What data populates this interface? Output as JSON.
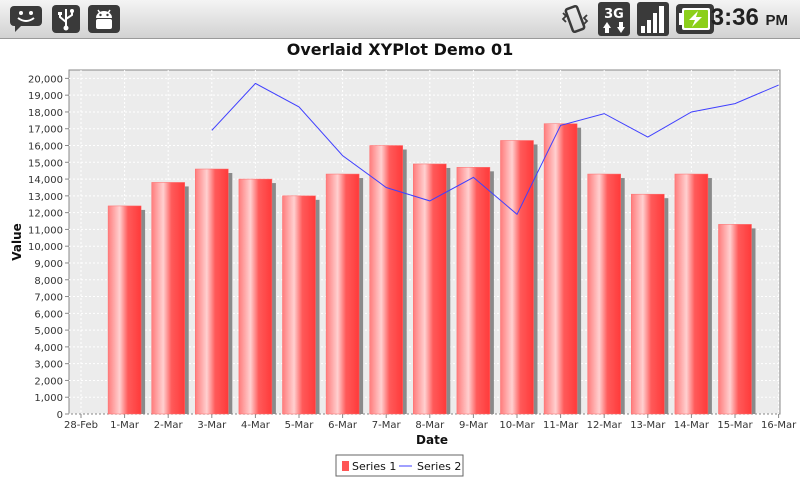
{
  "status_bar": {
    "time": "3:36",
    "ampm": "PM",
    "left_icons": [
      "notification-chat-icon",
      "usb-icon",
      "android-debug-icon"
    ],
    "right_icons": [
      "vibrate-icon",
      "3g-data-icon",
      "signal-strength-icon",
      "battery-charging-icon"
    ]
  },
  "chart_data": {
    "type": "bar",
    "title": "Overlaid XYPlot Demo 01",
    "xlabel": "Date",
    "ylabel": "Value",
    "ylim": [
      0,
      20500
    ],
    "yticks": [
      0,
      1000,
      2000,
      3000,
      4000,
      5000,
      6000,
      7000,
      8000,
      9000,
      10000,
      11000,
      12000,
      13000,
      14000,
      15000,
      16000,
      17000,
      18000,
      19000,
      20000
    ],
    "ytick_labels": [
      "0",
      "1,000",
      "2,000",
      "3,000",
      "4,000",
      "5,000",
      "6,000",
      "7,000",
      "8,000",
      "9,000",
      "10,000",
      "11,000",
      "12,000",
      "13,000",
      "14,000",
      "15,000",
      "16,000",
      "17,000",
      "18,000",
      "19,000",
      "20,000"
    ],
    "xtick_labels": [
      "28-Feb",
      "1-Mar",
      "2-Mar",
      "3-Mar",
      "4-Mar",
      "5-Mar",
      "6-Mar",
      "7-Mar",
      "8-Mar",
      "9-Mar",
      "10-Mar",
      "11-Mar",
      "12-Mar",
      "13-Mar",
      "14-Mar",
      "15-Mar",
      "16-Mar"
    ],
    "grid": true,
    "legend_position": "bottom",
    "series": [
      {
        "name": "Series 1",
        "type": "bar",
        "color": "#ff5555",
        "x": [
          "1-Mar",
          "2-Mar",
          "3-Mar",
          "4-Mar",
          "5-Mar",
          "6-Mar",
          "7-Mar",
          "8-Mar",
          "9-Mar",
          "10-Mar",
          "11-Mar",
          "12-Mar",
          "13-Mar",
          "14-Mar",
          "15-Mar"
        ],
        "values": [
          12400,
          13800,
          14600,
          14000,
          13000,
          14300,
          16000,
          14900,
          14700,
          16300,
          17300,
          14300,
          13100,
          14300,
          11300
        ]
      },
      {
        "name": "Series 2",
        "type": "line",
        "color": "#4040ff",
        "x": [
          "3-Mar",
          "4-Mar",
          "5-Mar",
          "6-Mar",
          "7-Mar",
          "8-Mar",
          "9-Mar",
          "10-Mar",
          "11-Mar",
          "12-Mar",
          "13-Mar",
          "14-Mar",
          "15-Mar",
          "16-Mar"
        ],
        "values": [
          16900,
          19700,
          18300,
          15400,
          13500,
          12700,
          14100,
          11900,
          17200,
          17900,
          16500,
          18000,
          18500,
          19600
        ]
      }
    ]
  }
}
